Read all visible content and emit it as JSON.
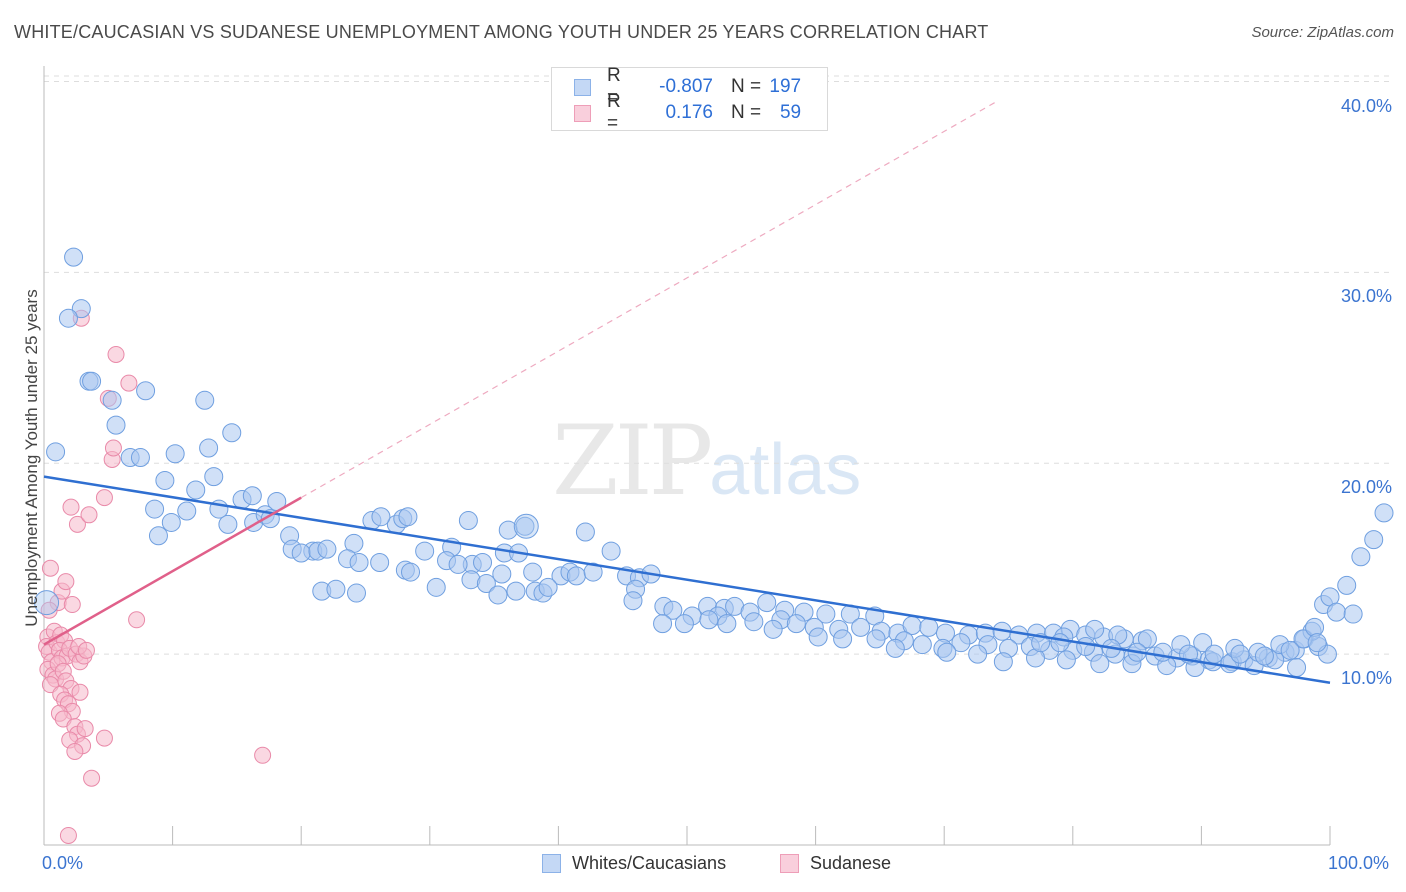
{
  "title": "WHITE/CAUCASIAN VS SUDANESE UNEMPLOYMENT AMONG YOUTH UNDER 25 YEARS CORRELATION CHART",
  "source": "Source: ZipAtlas.com",
  "watermark": {
    "zip": "ZIP",
    "atlas": "atlas"
  },
  "colors": {
    "blue_fill": "#a9c7f0",
    "blue_stroke": "#6f9fe0",
    "blue_line": "#2f6fd1",
    "pink_fill": "#f6b8cb",
    "pink_stroke": "#e98aa9",
    "pink_line": "#e0608a",
    "grid": "#dddddd",
    "tick_text": "#3b74d0"
  },
  "legend_top": [
    {
      "r_label": "R =",
      "r_value": "-0.807",
      "n_label": "N =",
      "n_value": "197"
    },
    {
      "r_label": "R =",
      "r_value": "0.176",
      "n_label": "N =",
      "n_value": "59"
    }
  ],
  "chart_data": {
    "type": "scatter",
    "title": "WHITE/CAUCASIAN VS SUDANESE UNEMPLOYMENT AMONG YOUTH UNDER 25 YEARS CORRELATION CHART",
    "xlabel": "",
    "ylabel": "Unemployment Among Youth under 25 years",
    "xlim": [
      0,
      100
    ],
    "ylim": [
      0,
      40.5
    ],
    "x_ticks": [
      "0.0%",
      "100.0%"
    ],
    "y_ticks": [
      {
        "value": 10,
        "label": "10.0%"
      },
      {
        "value": 20,
        "label": "20.0%"
      },
      {
        "value": 30,
        "label": "30.0%"
      },
      {
        "value": 40,
        "label": "40.0%"
      }
    ],
    "grid": "horizontal dashed",
    "legend_position": "bottom-center",
    "series": [
      {
        "name": "Whites/Caucasians",
        "color": "#a9c7f0",
        "trend": {
          "x": [
            0,
            100
          ],
          "y": [
            19.3,
            8.5
          ]
        },
        "points": [
          [
            0.9,
            20.6
          ],
          [
            2.3,
            30.8
          ],
          [
            2.9,
            28.1
          ],
          [
            1.9,
            27.6
          ],
          [
            3.5,
            24.3
          ],
          [
            3.7,
            24.3
          ],
          [
            5.3,
            23.3
          ],
          [
            7.9,
            23.8
          ],
          [
            12.5,
            23.3
          ],
          [
            14.6,
            21.6
          ],
          [
            5.6,
            22.0
          ],
          [
            6.7,
            20.3
          ],
          [
            7.5,
            20.3
          ],
          [
            10.2,
            20.5
          ],
          [
            12.8,
            20.8
          ],
          [
            13.2,
            19.3
          ],
          [
            9.4,
            19.1
          ],
          [
            11.8,
            18.6
          ],
          [
            15.4,
            18.1
          ],
          [
            18.1,
            18.0
          ],
          [
            16.2,
            18.3
          ],
          [
            8.6,
            17.6
          ],
          [
            11.1,
            17.5
          ],
          [
            14.3,
            16.8
          ],
          [
            16.3,
            16.9
          ],
          [
            17.2,
            17.3
          ],
          [
            17.6,
            17.1
          ],
          [
            9.9,
            16.9
          ],
          [
            8.9,
            16.2
          ],
          [
            13.6,
            17.6
          ],
          [
            19.1,
            16.2
          ],
          [
            20.9,
            15.4
          ],
          [
            19.3,
            15.5
          ],
          [
            20.0,
            15.3
          ],
          [
            21.3,
            15.4
          ],
          [
            22.0,
            15.5
          ],
          [
            24.1,
            15.8
          ],
          [
            25.5,
            17.0
          ],
          [
            27.4,
            16.8
          ],
          [
            26.2,
            17.2
          ],
          [
            27.9,
            17.1
          ],
          [
            28.3,
            17.2
          ],
          [
            33.0,
            17.0
          ],
          [
            36.1,
            16.5
          ],
          [
            37.4,
            16.7
          ],
          [
            42.1,
            16.4
          ],
          [
            44.1,
            15.4
          ],
          [
            31.7,
            15.6
          ],
          [
            29.6,
            15.4
          ],
          [
            31.3,
            14.9
          ],
          [
            33.3,
            14.7
          ],
          [
            32.2,
            14.7
          ],
          [
            34.1,
            14.8
          ],
          [
            35.8,
            15.3
          ],
          [
            36.9,
            15.3
          ],
          [
            23.6,
            15.0
          ],
          [
            24.5,
            14.8
          ],
          [
            26.1,
            14.8
          ],
          [
            28.1,
            14.4
          ],
          [
            28.5,
            14.3
          ],
          [
            33.2,
            13.9
          ],
          [
            35.6,
            14.2
          ],
          [
            38.0,
            14.3
          ],
          [
            40.2,
            14.1
          ],
          [
            40.9,
            14.3
          ],
          [
            41.4,
            14.1
          ],
          [
            42.7,
            14.3
          ],
          [
            45.3,
            14.1
          ],
          [
            46.3,
            14.0
          ],
          [
            47.2,
            14.2
          ],
          [
            21.6,
            13.3
          ],
          [
            22.7,
            13.4
          ],
          [
            24.3,
            13.2
          ],
          [
            30.5,
            13.5
          ],
          [
            34.4,
            13.7
          ],
          [
            35.3,
            13.1
          ],
          [
            36.7,
            13.3
          ],
          [
            38.2,
            13.3
          ],
          [
            38.8,
            13.2
          ],
          [
            39.2,
            13.5
          ],
          [
            46.0,
            13.4
          ],
          [
            45.8,
            12.8
          ],
          [
            48.2,
            12.5
          ],
          [
            48.9,
            12.3
          ],
          [
            51.6,
            12.5
          ],
          [
            52.9,
            12.4
          ],
          [
            53.7,
            12.5
          ],
          [
            54.9,
            12.2
          ],
          [
            56.2,
            12.7
          ],
          [
            57.6,
            12.3
          ],
          [
            59.1,
            12.2
          ],
          [
            60.8,
            12.1
          ],
          [
            62.7,
            12.1
          ],
          [
            64.6,
            12.0
          ],
          [
            52.4,
            12.0
          ],
          [
            55.2,
            11.7
          ],
          [
            57.3,
            11.8
          ],
          [
            58.5,
            11.6
          ],
          [
            59.9,
            11.4
          ],
          [
            61.8,
            11.3
          ],
          [
            63.5,
            11.4
          ],
          [
            65.1,
            11.2
          ],
          [
            66.4,
            11.1
          ],
          [
            67.5,
            11.5
          ],
          [
            68.8,
            11.4
          ],
          [
            70.1,
            11.1
          ],
          [
            71.9,
            11.0
          ],
          [
            73.2,
            11.1
          ],
          [
            74.5,
            11.2
          ],
          [
            75.8,
            11.0
          ],
          [
            77.2,
            11.1
          ],
          [
            78.5,
            11.1
          ],
          [
            79.8,
            11.3
          ],
          [
            81.0,
            11.0
          ],
          [
            82.4,
            10.9
          ],
          [
            84.0,
            10.8
          ],
          [
            85.4,
            10.7
          ],
          [
            48.1,
            11.6
          ],
          [
            50.4,
            12.0
          ],
          [
            53.1,
            11.6
          ],
          [
            49.8,
            11.6
          ],
          [
            51.7,
            11.8
          ],
          [
            56.7,
            11.3
          ],
          [
            60.2,
            10.9
          ],
          [
            62.1,
            10.8
          ],
          [
            64.7,
            10.8
          ],
          [
            66.9,
            10.7
          ],
          [
            68.3,
            10.5
          ],
          [
            69.9,
            10.3
          ],
          [
            71.3,
            10.6
          ],
          [
            73.4,
            10.5
          ],
          [
            75.0,
            10.3
          ],
          [
            76.7,
            10.4
          ],
          [
            78.2,
            10.2
          ],
          [
            80.0,
            10.2
          ],
          [
            81.6,
            10.1
          ],
          [
            83.3,
            10.0
          ],
          [
            84.7,
            9.9
          ],
          [
            86.4,
            9.9
          ],
          [
            88.1,
            9.8
          ],
          [
            89.3,
            9.9
          ],
          [
            90.6,
            9.7
          ],
          [
            92.4,
            9.6
          ],
          [
            93.3,
            9.7
          ],
          [
            95.2,
            9.8
          ],
          [
            96.5,
            10.1
          ],
          [
            97.3,
            10.2
          ],
          [
            98.0,
            10.8
          ],
          [
            99.1,
            10.4
          ],
          [
            98.6,
            11.2
          ],
          [
            66.2,
            10.3
          ],
          [
            70.2,
            10.1
          ],
          [
            72.6,
            10.0
          ],
          [
            74.6,
            9.6
          ],
          [
            77.1,
            9.8
          ],
          [
            79.5,
            9.7
          ],
          [
            82.1,
            9.5
          ],
          [
            84.6,
            9.5
          ],
          [
            87.3,
            9.4
          ],
          [
            89.5,
            9.3
          ],
          [
            90.9,
            9.6
          ],
          [
            92.2,
            9.5
          ],
          [
            94.1,
            9.4
          ],
          [
            95.7,
            9.7
          ],
          [
            97.4,
            9.3
          ],
          [
            99.8,
            10.0
          ],
          [
            79.3,
            10.9
          ],
          [
            81.7,
            11.3
          ],
          [
            83.5,
            11.0
          ],
          [
            85.8,
            10.8
          ],
          [
            88.4,
            10.5
          ],
          [
            90.1,
            10.6
          ],
          [
            92.6,
            10.3
          ],
          [
            94.4,
            10.1
          ],
          [
            96.1,
            10.5
          ],
          [
            97.9,
            10.8
          ],
          [
            98.8,
            11.4
          ],
          [
            99.5,
            12.6
          ],
          [
            100.0,
            13.0
          ],
          [
            101.3,
            13.6
          ],
          [
            100.5,
            12.2
          ],
          [
            102.4,
            15.1
          ],
          [
            103.4,
            16.0
          ],
          [
            104.2,
            17.4
          ],
          [
            101.8,
            12.1
          ],
          [
            99.0,
            10.6
          ],
          [
            96.9,
            10.2
          ],
          [
            94.9,
            9.9
          ],
          [
            93.0,
            10.0
          ],
          [
            91.0,
            10.0
          ],
          [
            89.0,
            10.0
          ],
          [
            87.0,
            10.1
          ],
          [
            85.0,
            10.1
          ],
          [
            83.0,
            10.3
          ],
          [
            81.0,
            10.4
          ],
          [
            79.0,
            10.6
          ],
          [
            77.5,
            10.6
          ]
        ]
      },
      {
        "name": "Sudanese",
        "color": "#f6b8cb",
        "trend": {
          "x": [
            0,
            20
          ],
          "y": [
            10.5,
            18.2
          ]
        },
        "trend_extension": {
          "x": [
            20,
            74.2
          ],
          "y": [
            18.2,
            39.0
          ]
        },
        "points": [
          [
            0.5,
            14.5
          ],
          [
            0.3,
            10.9
          ],
          [
            0.2,
            10.4
          ],
          [
            0.4,
            10.1
          ],
          [
            0.6,
            9.6
          ],
          [
            0.3,
            9.2
          ],
          [
            0.7,
            8.9
          ],
          [
            0.9,
            8.7
          ],
          [
            0.5,
            8.4
          ],
          [
            0.8,
            11.2
          ],
          [
            1.0,
            10.6
          ],
          [
            1.3,
            11.0
          ],
          [
            1.6,
            10.7
          ],
          [
            1.2,
            10.2
          ],
          [
            1.4,
            9.8
          ],
          [
            1.8,
            9.9
          ],
          [
            1.1,
            9.5
          ],
          [
            1.5,
            9.1
          ],
          [
            1.7,
            8.6
          ],
          [
            2.1,
            8.2
          ],
          [
            1.3,
            7.9
          ],
          [
            1.6,
            7.6
          ],
          [
            1.9,
            7.4
          ],
          [
            2.2,
            7.0
          ],
          [
            1.2,
            6.9
          ],
          [
            1.5,
            6.6
          ],
          [
            2.4,
            6.2
          ],
          [
            2.6,
            5.8
          ],
          [
            2.0,
            5.5
          ],
          [
            3.0,
            5.2
          ],
          [
            2.4,
            4.9
          ],
          [
            3.7,
            3.5
          ],
          [
            1.9,
            0.5
          ],
          [
            1.1,
            12.7
          ],
          [
            1.4,
            13.3
          ],
          [
            1.7,
            13.8
          ],
          [
            2.2,
            12.6
          ],
          [
            2.0,
            10.3
          ],
          [
            2.5,
            10.0
          ],
          [
            2.8,
            9.6
          ],
          [
            3.1,
            9.9
          ],
          [
            2.7,
            10.4
          ],
          [
            3.3,
            10.2
          ],
          [
            2.6,
            16.8
          ],
          [
            2.1,
            17.7
          ],
          [
            3.5,
            17.3
          ],
          [
            4.7,
            18.2
          ],
          [
            5.3,
            20.2
          ],
          [
            5.4,
            20.8
          ],
          [
            5.0,
            23.4
          ],
          [
            5.6,
            25.7
          ],
          [
            6.6,
            24.2
          ],
          [
            2.9,
            27.6
          ],
          [
            7.2,
            11.8
          ],
          [
            17.0,
            4.7
          ],
          [
            4.7,
            5.6
          ],
          [
            2.8,
            8.0
          ],
          [
            3.2,
            6.1
          ],
          [
            0.4,
            12.3
          ]
        ]
      }
    ]
  },
  "legend_bottom": [
    {
      "label": "Whites/Caucasians"
    },
    {
      "label": "Sudanese"
    }
  ]
}
